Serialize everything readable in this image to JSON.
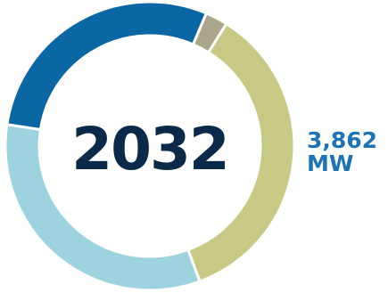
{
  "chart_data": {
    "type": "pie",
    "center_label": "2032",
    "total_value": "3,862",
    "total_unit": "MW",
    "slices": [
      {
        "value": 2.5,
        "color": "#a9a68c"
      },
      {
        "value": 35.5,
        "color": "#c8c985"
      },
      {
        "value": 33.0,
        "color": "#9dd2df"
      },
      {
        "value": 29.0,
        "color": "#0b67a3"
      }
    ]
  }
}
